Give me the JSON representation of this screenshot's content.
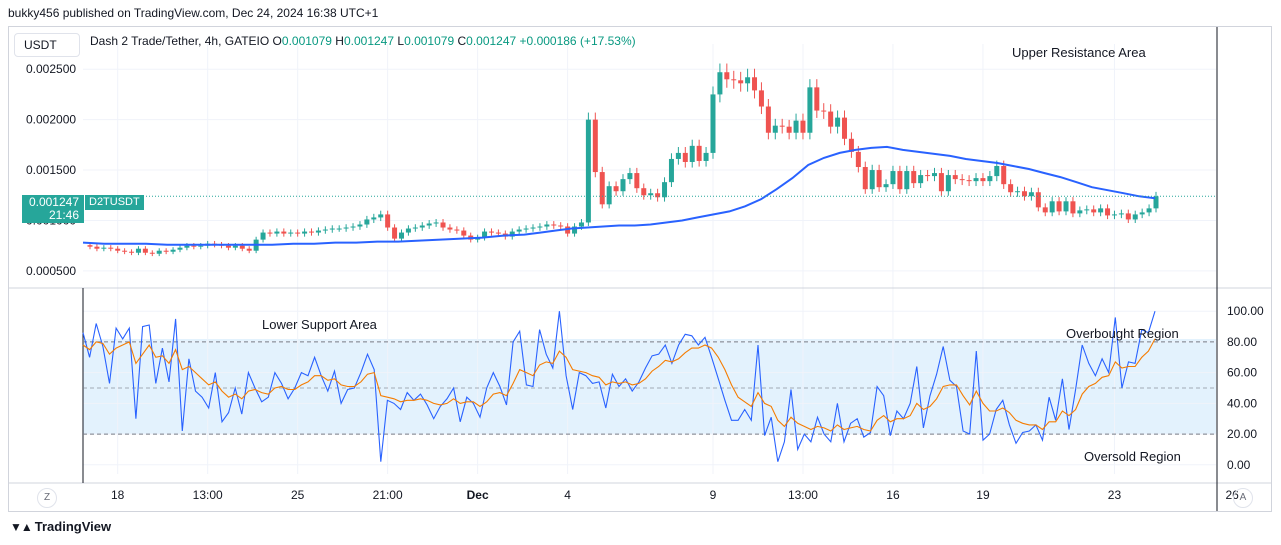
{
  "header": {
    "caption": "bukky456 published on TradingView.com, Dec 24, 2024 16:38 UTC+1"
  },
  "toolbar": {
    "currency": "USDT",
    "z_label": "Z",
    "a_label": "A"
  },
  "legend": {
    "symbol": "Dash 2 Trade/Tether, 4h, GATEIO",
    "o_label": "O",
    "o": "0.001079",
    "h_label": "H",
    "h": "0.001247",
    "l_label": "L",
    "l": "0.001079",
    "c_label": "C",
    "c": "0.001247",
    "change": "+0.000186 (+17.53%)"
  },
  "last_price": {
    "value": "0.001247",
    "countdown": "21:46",
    "ticker": "D2TUSDT"
  },
  "annotations": {
    "upper": "Upper Resistance Area",
    "lower": "Lower Support Area",
    "overbought": "Overbought Region",
    "oversold": "Oversold Region"
  },
  "branding": {
    "logo_icon": "tradingview-logo-icon",
    "name": "TradingView"
  },
  "colors": {
    "up": "#26a69a",
    "down": "#ef5350",
    "ma": "#2962ff",
    "rsi": "#2962ff",
    "rsi_ma": "#f57c00",
    "band_fill": "#e3f2fd",
    "grid": "#f0f3fa",
    "axis_text": "#131722"
  },
  "chart_data": [
    {
      "type": "candlestick",
      "title": "Dash 2 Trade/Tether, 4h, GATEIO",
      "y_ticks": [
        "0.002500",
        "0.002000",
        "0.001500",
        "0.001000",
        "0.000500"
      ],
      "y_tick_values": [
        0.0025,
        0.002,
        0.0015,
        0.001,
        0.0005
      ],
      "ylim": [
        0.00036,
        0.00275
      ],
      "x_ticks": [
        "18",
        "13:00",
        "25",
        "21:00",
        "Dec",
        "4",
        "9",
        "13:00",
        "16",
        "19",
        "23",
        "26"
      ],
      "x_tick_positions": [
        4,
        17,
        30,
        43,
        56,
        69,
        90,
        103,
        116,
        129,
        148,
        165
      ],
      "bar_count": 155,
      "close": [
        0.00074,
        0.00072,
        0.00073,
        0.00072,
        0.0007,
        0.00069,
        0.00068,
        0.00072,
        0.00068,
        0.00067,
        0.0007,
        0.00069,
        0.00071,
        0.00073,
        0.00075,
        0.00074,
        0.00075,
        0.00077,
        0.00076,
        0.00075,
        0.00073,
        0.00075,
        0.00072,
        0.0007,
        0.00081,
        0.00088,
        0.00087,
        0.00089,
        0.00087,
        0.00088,
        0.00087,
        0.00089,
        0.00088,
        0.0009,
        0.00091,
        0.00092,
        0.00092,
        0.00093,
        0.00094,
        0.00096,
        0.00101,
        0.00103,
        0.00106,
        0.00093,
        0.00082,
        0.00088,
        0.00092,
        0.00093,
        0.00095,
        0.00097,
        0.00098,
        0.00093,
        0.00091,
        0.0009,
        0.00085,
        0.00081,
        0.00083,
        0.00089,
        0.00088,
        0.00087,
        0.00084,
        0.00089,
        0.00091,
        0.00092,
        0.00093,
        0.00094,
        0.00096,
        0.00095,
        0.00094,
        0.00087,
        0.00094,
        0.00098,
        0.002,
        0.00148,
        0.00116,
        0.00134,
        0.00129,
        0.00141,
        0.00147,
        0.00132,
        0.00125,
        0.00127,
        0.00123,
        0.00138,
        0.00161,
        0.00167,
        0.00158,
        0.00174,
        0.00159,
        0.00167,
        0.00225,
        0.00247,
        0.0024,
        0.00239,
        0.00236,
        0.00242,
        0.00229,
        0.00213,
        0.00187,
        0.00194,
        0.00193,
        0.00187,
        0.00199,
        0.00187,
        0.00232,
        0.00209,
        0.00208,
        0.00193,
        0.00202,
        0.00181,
        0.00168,
        0.00153,
        0.00131,
        0.0015,
        0.00133,
        0.00136,
        0.00149,
        0.00131,
        0.00149,
        0.00137,
        0.00145,
        0.00144,
        0.00147,
        0.00129,
        0.00145,
        0.00141,
        0.0014,
        0.00139,
        0.00142,
        0.00139,
        0.00144,
        0.00154,
        0.00136,
        0.00128,
        0.00129,
        0.00124,
        0.00128,
        0.00113,
        0.00108,
        0.00119,
        0.00109,
        0.00119,
        0.00107,
        0.0011,
        0.00111,
        0.00108,
        0.00112,
        0.00105,
        0.00106,
        0.00107,
        0.00101,
        0.00106,
        0.00108,
        0.00112,
        0.00124
      ],
      "ma_line": [
        0.00078,
        0.00077,
        0.00077,
        0.00077,
        0.00076,
        0.00076,
        0.00076,
        0.00076,
        0.00076,
        0.00076,
        0.00077,
        0.00077,
        0.00078,
        0.00078,
        0.00079,
        0.00079,
        0.0008,
        0.00081,
        0.00082,
        0.00083,
        0.00085,
        0.00086,
        0.00088,
        0.0009,
        0.00092,
        0.00093,
        0.00094,
        0.00095,
        0.00095,
        0.00096,
        0.00098,
        0.001,
        0.00103,
        0.00106,
        0.00109,
        0.00114,
        0.00121,
        0.00131,
        0.00142,
        0.00155,
        0.00162,
        0.00167,
        0.0017,
        0.00172,
        0.00173,
        0.0017,
        0.00168,
        0.00166,
        0.00164,
        0.00161,
        0.00159,
        0.00157,
        0.00154,
        0.00151,
        0.00147,
        0.00143,
        0.00138,
        0.00133,
        0.0013,
        0.00127,
        0.00124,
        0.00122
      ],
      "ma_line_x": [
        0,
        4,
        8,
        12,
        16,
        20,
        24,
        28,
        32,
        36,
        40,
        44,
        48,
        52,
        56,
        60,
        64,
        68,
        72,
        76,
        80,
        84,
        87,
        90,
        93,
        96,
        99,
        102,
        105,
        108,
        111,
        114,
        117,
        120,
        123,
        126,
        129,
        132,
        135,
        138,
        141,
        144,
        147,
        150,
        153,
        156,
        159,
        162,
        165,
        168,
        171,
        174,
        177,
        180,
        183,
        186,
        189,
        192,
        195,
        198,
        201,
        204
      ],
      "note": "Blue moving average line overlaid on price"
    },
    {
      "type": "line",
      "title": "",
      "y_ticks": [
        "100.00",
        "80.00",
        "60.00",
        "40.00",
        "20.00",
        "0.00"
      ],
      "y_tick_values": [
        100,
        80,
        60,
        40,
        20,
        0
      ],
      "ylim": [
        -6,
        106
      ],
      "bands": {
        "upper": 80,
        "middle": 50,
        "lower": 20
      },
      "series": [
        {
          "values": [
            86,
            70,
            92,
            77,
            53,
            89,
            82,
            89,
            30,
            90,
            91,
            53,
            76,
            54,
            95,
            22,
            69,
            48,
            44,
            37,
            60,
            28,
            34,
            50,
            33,
            60,
            50,
            41,
            44,
            60,
            53,
            43,
            50,
            60,
            58,
            70,
            58,
            48,
            61,
            40,
            49,
            50,
            60,
            72,
            62,
            2,
            42,
            40,
            36,
            47,
            42,
            46,
            39,
            30,
            38,
            43,
            50,
            28,
            44,
            40,
            31,
            50,
            60,
            51,
            39,
            80,
            87,
            52,
            51,
            88,
            72,
            63,
            100,
            58,
            36,
            60,
            58,
            53,
            54,
            37,
            59,
            51,
            56,
            48,
            54,
            63,
            71,
            72,
            78,
            66,
            78,
            85,
            84,
            78,
            83,
            70,
            56,
            42,
            29,
            29,
            36,
            29,
            78,
            19,
            31,
            2,
            15,
            49,
            10,
            20,
            15,
            31,
            20,
            15,
            40,
            15,
            27,
            30,
            18,
            21,
            51,
            45,
            19,
            35,
            30,
            40,
            64,
            24,
            45,
            59,
            77,
            55,
            51,
            22,
            20,
            74,
            16,
            20,
            36,
            42,
            26,
            14,
            21,
            22,
            26,
            16,
            44,
            29,
            56,
            23,
            49,
            78,
            66,
            58,
            69,
            60,
            96,
            50,
            67,
            66,
            88,
            86,
            100
          ]
        },
        {
          "values": [
            78,
            75,
            80,
            79,
            72,
            76,
            78,
            80,
            66,
            72,
            78,
            70,
            71,
            66,
            75,
            62,
            64,
            60,
            56,
            52,
            54,
            48,
            44,
            46,
            43,
            48,
            49,
            47,
            46,
            50,
            51,
            49,
            49,
            52,
            54,
            58,
            58,
            55,
            56,
            52,
            51,
            51,
            54,
            59,
            60,
            45,
            44,
            43,
            41,
            42,
            42,
            43,
            42,
            40,
            39,
            40,
            43,
            40,
            41,
            41,
            38,
            41,
            46,
            47,
            45,
            53,
            62,
            60,
            58,
            65,
            67,
            66,
            74,
            70,
            62,
            61,
            60,
            58,
            57,
            52,
            54,
            53,
            54,
            52,
            53,
            56,
            61,
            64,
            68,
            67,
            69,
            73,
            76,
            76,
            78,
            76,
            70,
            62,
            52,
            44,
            41,
            38,
            47,
            40,
            38,
            29,
            25,
            31,
            27,
            25,
            23,
            25,
            24,
            22,
            26,
            23,
            24,
            25,
            23,
            22,
            29,
            32,
            28,
            30,
            30,
            32,
            40,
            36,
            38,
            43,
            51,
            52,
            52,
            45,
            39,
            48,
            40,
            35,
            35,
            37,
            34,
            29,
            27,
            26,
            26,
            23,
            28,
            28,
            35,
            32,
            36,
            46,
            51,
            53,
            57,
            58,
            67,
            63,
            64,
            64,
            70,
            74,
            82
          ]
        }
      ],
      "note": "Blue oscillator and orange signal line with dashed 80/50/20 levels"
    }
  ]
}
